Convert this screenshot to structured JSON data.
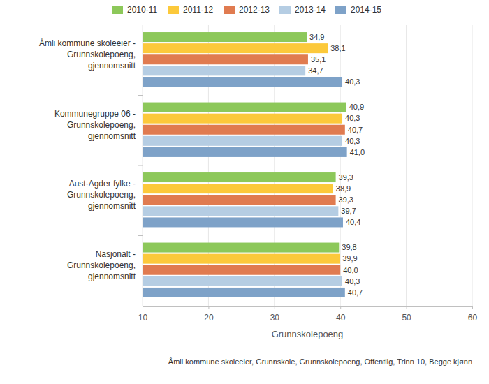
{
  "chart_data": {
    "type": "bar",
    "orientation": "horizontal",
    "categories": [
      "Åmli kommune skoleeier - Grunnskolepoeng, gjennomsnitt",
      "Kommunegruppe 06 - Grunnskolepoeng, gjennomsnitt",
      "Aust-Agder fylke - Grunnskolepoeng, gjennomsnitt",
      "Nasjonalt - Grunnskolepoeng, gjennomsnitt"
    ],
    "series": [
      {
        "name": "2010-11",
        "color": "#8dc85a",
        "values": [
          34.9,
          40.9,
          39.3,
          39.8
        ],
        "value_labels": [
          "34,9",
          "40,9",
          "39,3",
          "39,8"
        ]
      },
      {
        "name": "2011-12",
        "color": "#fcc93b",
        "values": [
          38.1,
          40.3,
          38.9,
          39.9
        ],
        "value_labels": [
          "38,1",
          "40,3",
          "38,9",
          "39,9"
        ]
      },
      {
        "name": "2012-13",
        "color": "#e07b50",
        "values": [
          35.1,
          40.7,
          39.3,
          40.0
        ],
        "value_labels": [
          "35,1",
          "40,7",
          "39,3",
          "40,0"
        ]
      },
      {
        "name": "2013-14",
        "color": "#b5cde3",
        "values": [
          34.7,
          40.3,
          39.7,
          40.3
        ],
        "value_labels": [
          "34,7",
          "40,3",
          "39,7",
          "40,3"
        ]
      },
      {
        "name": "2014-15",
        "color": "#7ea2c8",
        "values": [
          40.3,
          41.0,
          40.4,
          40.7
        ],
        "value_labels": [
          "40,3",
          "41,0",
          "40,4",
          "40,7"
        ]
      }
    ],
    "xlim": [
      10,
      60
    ],
    "xticks": [
      10,
      20,
      30,
      40,
      50,
      60
    ],
    "x_label": "Grunnskolepoeng",
    "annotations": [
      "Åmli kommune skoleeier, Grunnskole, Grunnskolepoeng, Offentlig, Trinn 10, Begge kjønn"
    ],
    "grid": true,
    "legend": "top",
    "data_labels": true
  }
}
